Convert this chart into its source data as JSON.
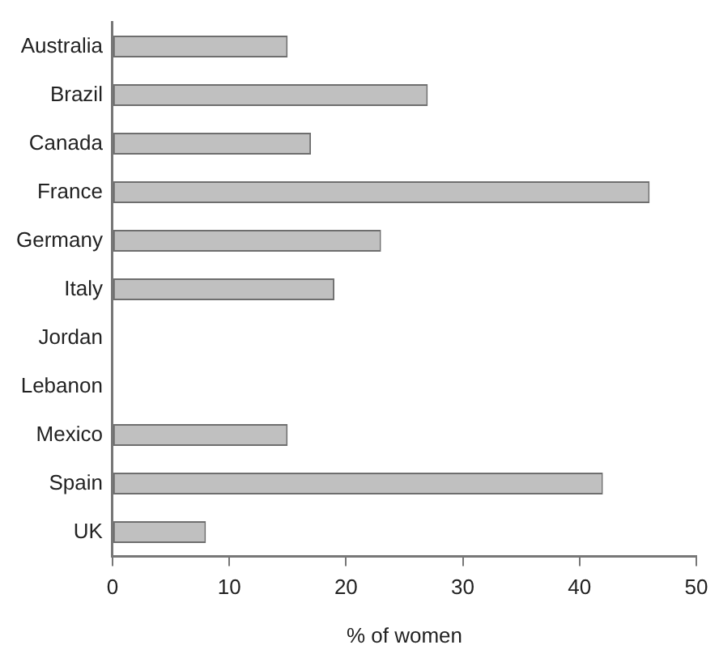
{
  "chart_data": {
    "type": "bar",
    "orientation": "horizontal",
    "xlabel": "% of women",
    "categories": [
      "Australia",
      "Brazil",
      "Canada",
      "France",
      "Germany",
      "Italy",
      "Jordan",
      "Lebanon",
      "Mexico",
      "Spain",
      "UK"
    ],
    "values": [
      15,
      27,
      17,
      46,
      23,
      19,
      null,
      null,
      15,
      42,
      8
    ],
    "color": "#c0c0c0",
    "xlim": [
      0,
      50
    ],
    "xticks": [
      0,
      10,
      20,
      30,
      40,
      50
    ],
    "grid": false,
    "legend": false
  }
}
